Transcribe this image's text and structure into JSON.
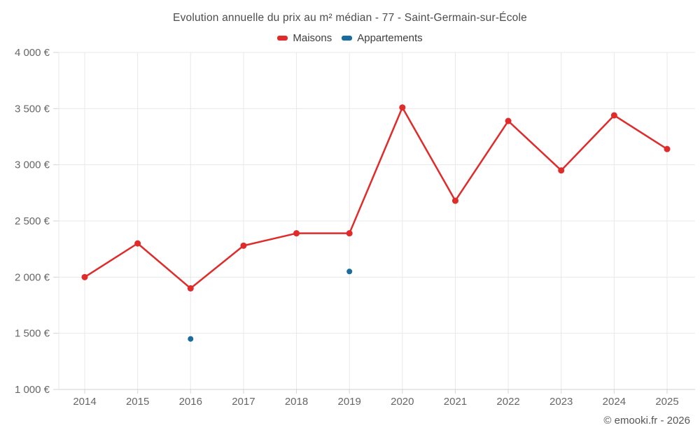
{
  "header": {
    "title": "Evolution annuelle du prix au m² médian - 77 - Saint-Germain-sur-École"
  },
  "legend": {
    "items": [
      {
        "label": "Maisons",
        "color": "#e02b2b"
      },
      {
        "label": "Appartements",
        "color": "#1a6c9e"
      }
    ]
  },
  "footer": {
    "credit": "© emooki.fr - 2026"
  },
  "chart_data": {
    "type": "line",
    "title": "Evolution annuelle du prix au m² médian - 77 - Saint-Germain-sur-École",
    "categories": [
      "2014",
      "2015",
      "2016",
      "2017",
      "2018",
      "2019",
      "2020",
      "2021",
      "2022",
      "2023",
      "2024",
      "2025"
    ],
    "series": [
      {
        "name": "Maisons",
        "color": "#e02b2b",
        "values": [
          2000,
          2300,
          1900,
          2280,
          2390,
          2390,
          3510,
          2680,
          3390,
          2950,
          3440,
          3140
        ]
      },
      {
        "name": "Appartements",
        "color": "#1a6c9e",
        "values": [
          null,
          null,
          1450,
          null,
          null,
          2050,
          null,
          null,
          null,
          null,
          null,
          null
        ]
      }
    ],
    "ylabel": "",
    "xlabel": "",
    "ylim": [
      1000,
      4000
    ],
    "ytick_step": 500,
    "ytick_labels": [
      "1 000 €",
      "1 500 €",
      "2 000 €",
      "2 500 €",
      "3 000 €",
      "3 500 €",
      "4 000 €"
    ],
    "grid": true,
    "legend_position": "top",
    "currency": "€"
  },
  "colors": {
    "grid": "#e8e8e8",
    "axis_line": "#d0d0d0",
    "tick": "#d6d6d6",
    "axis_text": "#666666"
  }
}
